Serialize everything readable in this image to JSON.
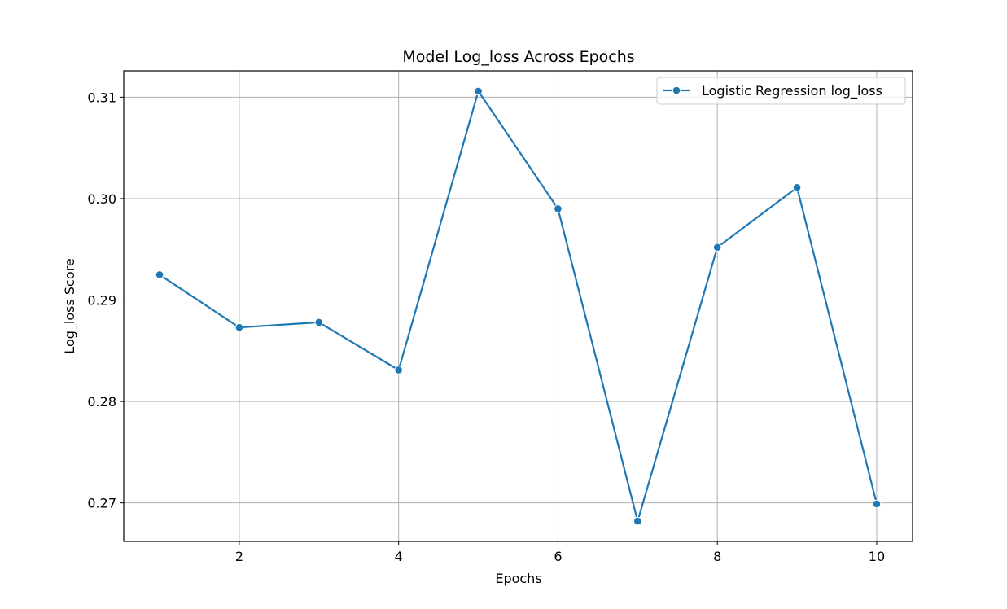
{
  "chart_data": {
    "type": "line",
    "title": "Model Log_loss Across Epochs",
    "xlabel": "Epochs",
    "ylabel": "Log_loss Score",
    "xlim": [
      0.55,
      10.45
    ],
    "ylim": [
      0.2662,
      0.3126
    ],
    "x_ticks": [
      2,
      4,
      6,
      8,
      10
    ],
    "y_ticks": [
      0.27,
      0.28,
      0.29,
      0.3,
      0.31
    ],
    "x_tick_labels": [
      "2",
      "4",
      "6",
      "8",
      "10"
    ],
    "y_tick_labels": [
      "0.27",
      "0.28",
      "0.29",
      "0.30",
      "0.31"
    ],
    "grid": true,
    "legend_position": "top-right",
    "series": [
      {
        "name": "Logistic Regression log_loss",
        "color": "#1f77b4",
        "marker": "circle",
        "x": [
          1,
          2,
          3,
          4,
          5,
          6,
          7,
          8,
          9,
          10
        ],
        "y": [
          0.2925,
          0.2873,
          0.2878,
          0.2831,
          0.3106,
          0.299,
          0.2682,
          0.2952,
          0.3011,
          0.2699
        ]
      }
    ]
  }
}
